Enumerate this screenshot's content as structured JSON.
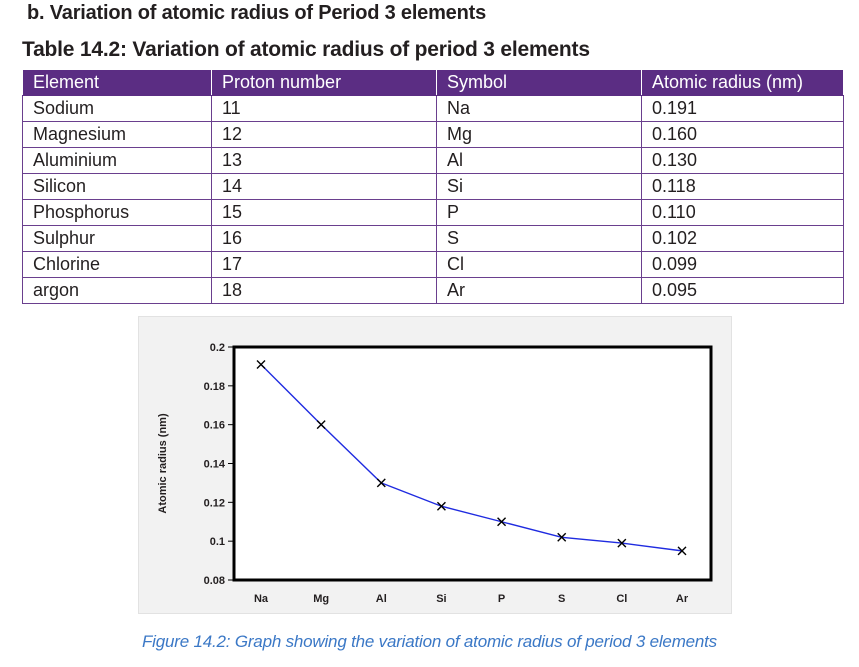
{
  "heading": "b. Variation of atomic radius of Period 3 elements",
  "table": {
    "title": "Table 14.2: Variation of atomic radius of period 3 elements",
    "headers": [
      "Element",
      "Proton number",
      "Symbol",
      "Atomic radius (nm)"
    ],
    "rows": [
      [
        "Sodium",
        "11",
        "Na",
        "0.191"
      ],
      [
        "Magnesium",
        "12",
        "Mg",
        "0.160"
      ],
      [
        "Aluminium",
        "13",
        "Al",
        "0.130"
      ],
      [
        "Silicon",
        "14",
        "Si",
        "0.118"
      ],
      [
        "Phosphorus",
        "15",
        "P",
        "0.110"
      ],
      [
        "Sulphur",
        "16",
        "S",
        "0.102"
      ],
      [
        "Chlorine",
        "17",
        "Cl",
        "0.099"
      ],
      [
        "argon",
        "18",
        "Ar",
        "0.095"
      ]
    ],
    "header_color": "#5b2d83"
  },
  "chart_data": {
    "type": "line",
    "categories": [
      "Na",
      "Mg",
      "Al",
      "Si",
      "P",
      "S",
      "Cl",
      "Ar"
    ],
    "values": [
      0.191,
      0.16,
      0.13,
      0.118,
      0.11,
      0.102,
      0.099,
      0.095
    ],
    "ylabel": "Atomic radius (nm)",
    "xlabel": "",
    "ylim": [
      0.08,
      0.2
    ],
    "yticks": [
      "0.08",
      "0.1",
      "0.12",
      "0.14",
      "0.16",
      "0.18",
      "0.2"
    ],
    "marker": "x",
    "grid": false,
    "line_color": "#1f2be0"
  },
  "caption": "Figure 14.2: Graph showing the variation of atomic radius of period 3 elements"
}
